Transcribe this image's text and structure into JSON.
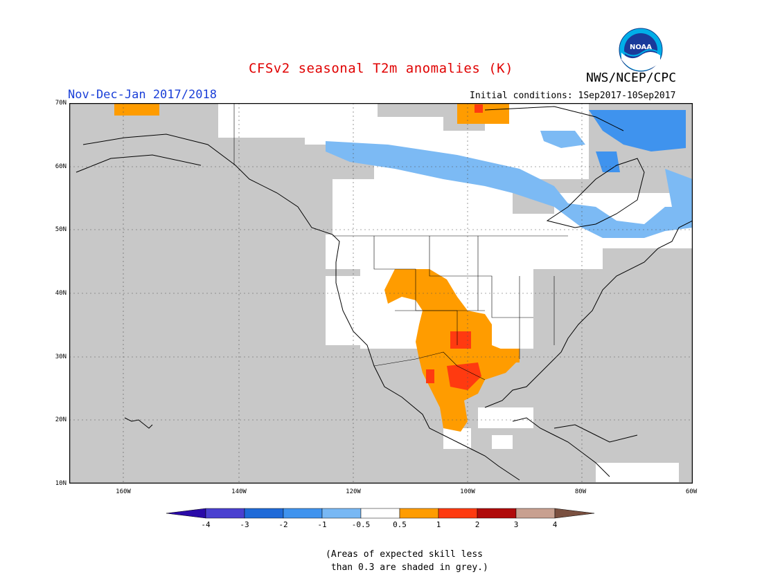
{
  "title": "CFSv2 seasonal T2m anomalies (K)",
  "agency": "NWS/NCEP/CPC",
  "period": "Nov-Dec-Jan 2017/2018",
  "initial_conditions": "Initial conditions: 1Sep2017-10Sep2017",
  "logo_text": "NOAA",
  "lat_labels": [
    "70N",
    "60N",
    "50N",
    "40N",
    "30N",
    "20N",
    "10N"
  ],
  "lon_labels": [
    "160W",
    "140W",
    "120W",
    "100W",
    "80W",
    "60W"
  ],
  "colorbar": {
    "labels": [
      "-4",
      "-3",
      "-2",
      "-1",
      "-0.5",
      "0.5",
      "1",
      "2",
      "3",
      "4"
    ],
    "colors": [
      "#2a0aa8",
      "#4a40d0",
      "#1f6ad8",
      "#3f93ee",
      "#78b8f4",
      "#ffffff",
      "#ff9c00",
      "#ff3a10",
      "#b00a0a",
      "#c8a090",
      "#7a5040"
    ]
  },
  "map_colors": {
    "grey": "#c8c8c8",
    "white": "#ffffff",
    "light_blue": "#7cbaf4",
    "blue": "#3f93ee",
    "orange": "#ff9c00",
    "red": "#ff3a10",
    "coast": "#000000"
  },
  "footnote": "(Areas of expected skill less\n than 0.3 are shaded in grey.)"
}
